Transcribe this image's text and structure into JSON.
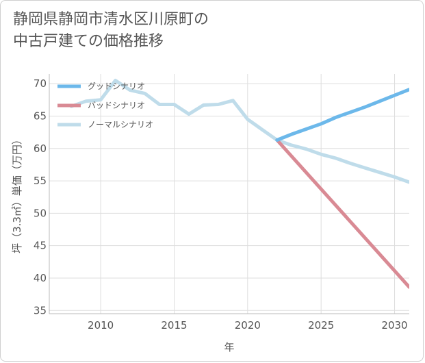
{
  "title_line1": "静岡県静岡市清水区川原町の",
  "title_line2": "中古戸建ての価格推移",
  "chart_data": {
    "type": "line",
    "xlabel": "年",
    "ylabel": "坪（3.3㎡）単価（万円）",
    "xlim": [
      2006.5,
      2031
    ],
    "ylim": [
      34.5,
      71.5
    ],
    "x_ticks": [
      2010,
      2015,
      2020,
      2025,
      2030
    ],
    "y_ticks": [
      35,
      40,
      45,
      50,
      55,
      60,
      65,
      70
    ],
    "grid": true,
    "legend_position": "top-left",
    "series": [
      {
        "name": "グッドシナリオ",
        "color": "#6cb8ea",
        "x": [
          2022,
          2023,
          2024,
          2025,
          2026,
          2027,
          2028,
          2029,
          2030,
          2031
        ],
        "y": [
          61.3,
          62.2,
          63.0,
          63.8,
          64.8,
          65.6,
          66.4,
          67.3,
          68.2,
          69.1
        ]
      },
      {
        "name": "バッドシナリオ",
        "color": "#d98a94",
        "x": [
          2022,
          2031
        ],
        "y": [
          61.3,
          38.6
        ]
      },
      {
        "name": "ノーマルシナリオ",
        "color": "#bfdcea",
        "x": [
          2008,
          2009,
          2010,
          2011,
          2012,
          2013,
          2014,
          2015,
          2016,
          2017,
          2018,
          2019,
          2020,
          2021,
          2022,
          2023,
          2024,
          2025,
          2026,
          2027,
          2028,
          2029,
          2030,
          2031
        ],
        "y": [
          66.5,
          67.3,
          67.5,
          70.5,
          69.0,
          68.5,
          66.8,
          66.8,
          65.3,
          66.7,
          66.8,
          67.4,
          64.5,
          62.9,
          61.3,
          60.5,
          59.9,
          59.1,
          58.5,
          57.7,
          57.0,
          56.3,
          55.6,
          54.8
        ]
      }
    ]
  }
}
